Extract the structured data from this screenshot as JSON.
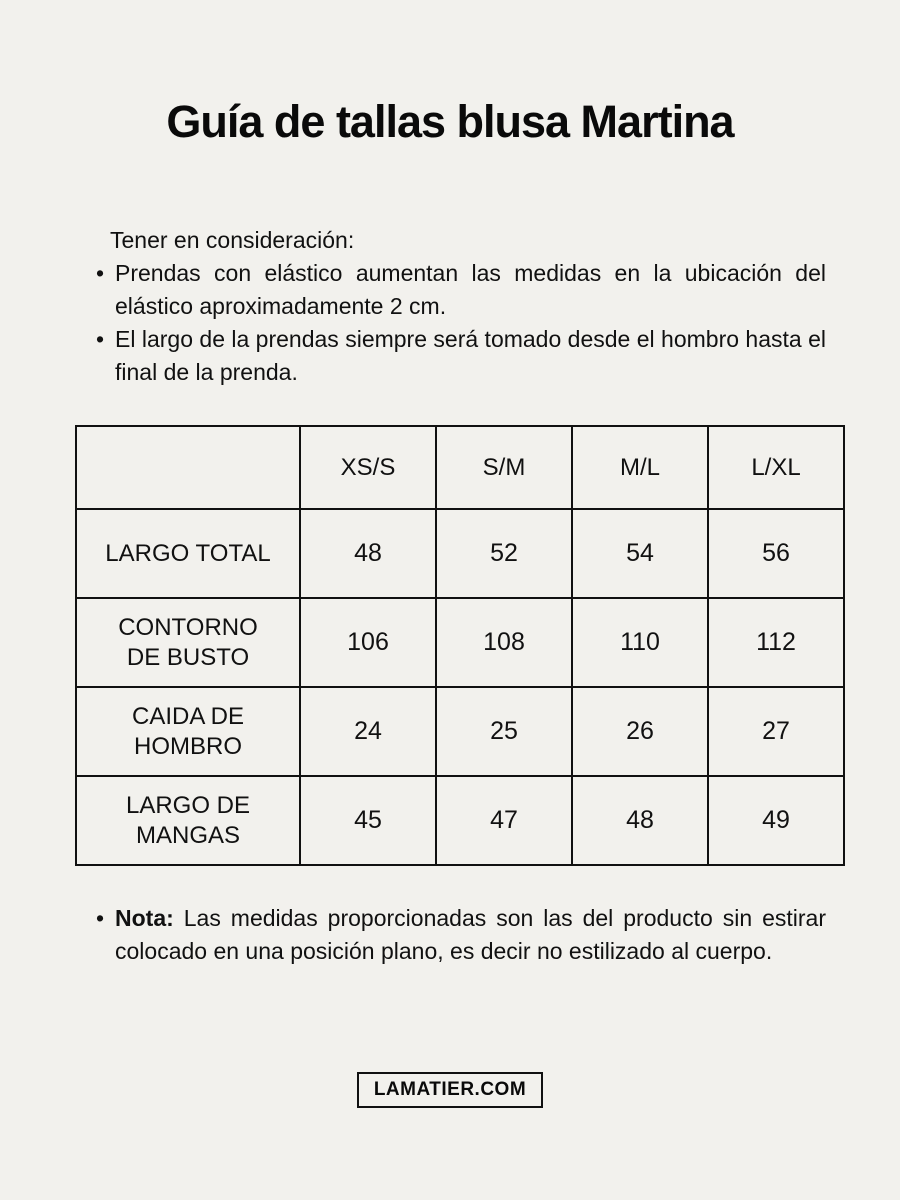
{
  "page": {
    "title": "Guía de tallas blusa Martina",
    "background_color": "#f2f1ed",
    "text_color": "#111111",
    "border_color": "#111111"
  },
  "considerations": {
    "heading": "Tener en consideración:",
    "items": [
      "Prendas con elástico aumentan las medidas en la ubicación del elástico aproximadamente 2 cm.",
      "El largo de la prendas siempre será tomado desde el hombro hasta el final de la prenda."
    ]
  },
  "size_table": {
    "column_headers": [
      "",
      "XS/S",
      "S/M",
      "M/L",
      "L/XL"
    ],
    "rows": [
      {
        "label": "LARGO TOTAL",
        "values": [
          "48",
          "52",
          "54",
          "56"
        ]
      },
      {
        "label": "CONTORNO DE BUSTO",
        "values": [
          "106",
          "108",
          "110",
          "112"
        ]
      },
      {
        "label": "CAIDA DE HOMBRO",
        "values": [
          "24",
          "25",
          "26",
          "27"
        ]
      },
      {
        "label": "LARGO DE MANGAS",
        "values": [
          "45",
          "47",
          "48",
          "49"
        ]
      }
    ]
  },
  "note": {
    "label": "Nota:",
    "text": " Las medidas proporcionadas son las del producto sin estirar colocado en una posición plano, es decir no estilizado al cuerpo."
  },
  "footer": {
    "brand": "LAMATIER.COM"
  }
}
